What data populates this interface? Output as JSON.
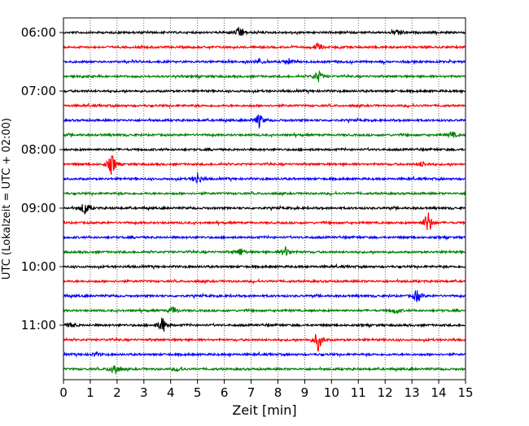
{
  "chart_data": {
    "type": "line",
    "subtype": "helicorder",
    "xlabel": "Zeit  [min]",
    "ylabel": "UTC (Lokalzeit = UTC + 02:00)",
    "xlim": [
      0,
      15
    ],
    "x_ticks": [
      0,
      1,
      2,
      3,
      4,
      5,
      6,
      7,
      8,
      9,
      10,
      11,
      12,
      13,
      14,
      15
    ],
    "y_tick_labels": [
      "06:00",
      "07:00",
      "08:00",
      "09:00",
      "10:00",
      "11:00"
    ],
    "trace_interval_min": 15,
    "trace_color_cycle": [
      "#000000",
      "#ff0000",
      "#0000ff",
      "#008000"
    ],
    "grid": "vertical dotted lines at each minute",
    "traces": [
      {
        "start": "06:00",
        "events": [
          {
            "t": 6.6,
            "amp": 0.9
          },
          {
            "t": 12.5,
            "amp": 0.5
          }
        ]
      },
      {
        "start": "06:15",
        "events": [
          {
            "t": 9.5,
            "amp": 0.6
          }
        ]
      },
      {
        "start": "06:30",
        "events": [
          {
            "t": 7.3,
            "amp": 0.4
          },
          {
            "t": 8.4,
            "amp": 0.5
          }
        ]
      },
      {
        "start": "06:45",
        "events": [
          {
            "t": 9.5,
            "amp": 0.9
          }
        ]
      },
      {
        "start": "07:00",
        "events": []
      },
      {
        "start": "07:15",
        "events": []
      },
      {
        "start": "07:30",
        "events": [
          {
            "t": 7.3,
            "amp": 1.0
          }
        ]
      },
      {
        "start": "07:45",
        "events": [
          {
            "t": 14.5,
            "amp": 0.5
          }
        ]
      },
      {
        "start": "08:00",
        "events": []
      },
      {
        "start": "08:15",
        "events": [
          {
            "t": 1.8,
            "amp": 1.6
          },
          {
            "t": 13.4,
            "amp": 0.4
          }
        ]
      },
      {
        "start": "08:30",
        "events": [
          {
            "t": 5.0,
            "amp": 0.9
          }
        ]
      },
      {
        "start": "08:45",
        "events": []
      },
      {
        "start": "09:00",
        "events": [
          {
            "t": 0.8,
            "amp": 1.1
          }
        ]
      },
      {
        "start": "09:15",
        "events": [
          {
            "t": 13.6,
            "amp": 1.8
          }
        ]
      },
      {
        "start": "09:30",
        "events": []
      },
      {
        "start": "09:45",
        "events": [
          {
            "t": 6.6,
            "amp": 0.6
          },
          {
            "t": 8.3,
            "amp": 0.7
          }
        ]
      },
      {
        "start": "10:00",
        "events": []
      },
      {
        "start": "10:15",
        "events": []
      },
      {
        "start": "10:30",
        "events": [
          {
            "t": 13.2,
            "amp": 1.0
          }
        ]
      },
      {
        "start": "10:45",
        "events": [
          {
            "t": 4.1,
            "amp": 0.6
          },
          {
            "t": 12.4,
            "amp": 0.5
          }
        ]
      },
      {
        "start": "11:00",
        "events": [
          {
            "t": 3.7,
            "amp": 1.3
          },
          {
            "t": 0.3,
            "amp": 0.4
          }
        ]
      },
      {
        "start": "11:15",
        "events": [
          {
            "t": 9.5,
            "amp": 1.5
          }
        ]
      },
      {
        "start": "11:30",
        "events": [
          {
            "t": 1.2,
            "amp": 0.3
          }
        ]
      },
      {
        "start": "11:45",
        "events": [
          {
            "t": 1.9,
            "amp": 1.0
          },
          {
            "t": 4.3,
            "amp": 0.3
          }
        ]
      }
    ]
  }
}
